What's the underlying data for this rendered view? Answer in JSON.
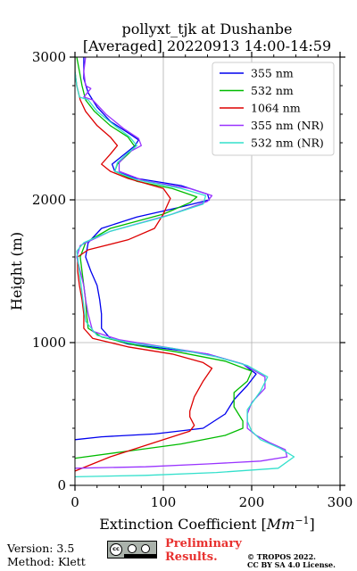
{
  "chart_data": {
    "type": "line",
    "title": "pollyxt_tjk at Dushanbe",
    "subtitle": "[Averaged] 20220913 14:00-14:59",
    "xlabel": "Extinction Coefficient [",
    "xlabel_unit": "Mm",
    "xlabel_exp": "−1",
    "xlabel_end": "]",
    "ylabel": "Height (m)",
    "xlim": [
      0,
      300
    ],
    "ylim": [
      0,
      3000
    ],
    "x_ticks": [
      0,
      100,
      200,
      300
    ],
    "y_ticks": [
      0,
      1000,
      2000,
      3000
    ],
    "grid": true,
    "legend_position": "top-right",
    "series": [
      {
        "name": "355 nm",
        "color": "#0000ee",
        "points": [
          [
            0,
            320
          ],
          [
            30,
            340
          ],
          [
            90,
            360
          ],
          [
            145,
            400
          ],
          [
            170,
            500
          ],
          [
            180,
            600
          ],
          [
            195,
            700
          ],
          [
            205,
            780
          ],
          [
            190,
            850
          ],
          [
            150,
            920
          ],
          [
            100,
            960
          ],
          [
            60,
            990
          ],
          [
            40,
            1030
          ],
          [
            30,
            1100
          ],
          [
            30,
            1200
          ],
          [
            28,
            1300
          ],
          [
            25,
            1400
          ],
          [
            18,
            1500
          ],
          [
            12,
            1600
          ],
          [
            15,
            1700
          ],
          [
            30,
            1800
          ],
          [
            70,
            1880
          ],
          [
            120,
            1950
          ],
          [
            152,
            2000
          ],
          [
            150,
            2040
          ],
          [
            120,
            2100
          ],
          [
            70,
            2150
          ],
          [
            45,
            2200
          ],
          [
            42,
            2250
          ],
          [
            52,
            2300
          ],
          [
            68,
            2380
          ],
          [
            72,
            2420
          ],
          [
            60,
            2470
          ],
          [
            40,
            2550
          ],
          [
            25,
            2650
          ],
          [
            15,
            2750
          ],
          [
            10,
            2850
          ],
          [
            10,
            2950
          ],
          [
            10,
            3000
          ]
        ]
      },
      {
        "name": "532 nm",
        "color": "#00bb00",
        "points": [
          [
            0,
            190
          ],
          [
            60,
            240
          ],
          [
            120,
            290
          ],
          [
            170,
            350
          ],
          [
            190,
            400
          ],
          [
            190,
            450
          ],
          [
            180,
            550
          ],
          [
            180,
            650
          ],
          [
            195,
            730
          ],
          [
            200,
            800
          ],
          [
            170,
            870
          ],
          [
            120,
            930
          ],
          [
            70,
            980
          ],
          [
            30,
            1040
          ],
          [
            15,
            1100
          ],
          [
            13,
            1200
          ],
          [
            12,
            1300
          ],
          [
            10,
            1400
          ],
          [
            8,
            1500
          ],
          [
            6,
            1600
          ],
          [
            12,
            1700
          ],
          [
            40,
            1800
          ],
          [
            100,
            1900
          ],
          [
            130,
            1980
          ],
          [
            138,
            2020
          ],
          [
            110,
            2080
          ],
          [
            70,
            2130
          ],
          [
            45,
            2200
          ],
          [
            48,
            2250
          ],
          [
            60,
            2320
          ],
          [
            68,
            2370
          ],
          [
            60,
            2440
          ],
          [
            40,
            2520
          ],
          [
            22,
            2620
          ],
          [
            12,
            2700
          ],
          [
            8,
            2800
          ],
          [
            5,
            2900
          ],
          [
            2,
            3000
          ]
        ]
      },
      {
        "name": "1064 nm",
        "color": "#dd0000",
        "points": [
          [
            0,
            100
          ],
          [
            40,
            200
          ],
          [
            90,
            300
          ],
          [
            130,
            380
          ],
          [
            135,
            420
          ],
          [
            130,
            480
          ],
          [
            130,
            520
          ],
          [
            135,
            620
          ],
          [
            145,
            730
          ],
          [
            155,
            820
          ],
          [
            145,
            860
          ],
          [
            110,
            920
          ],
          [
            60,
            970
          ],
          [
            20,
            1030
          ],
          [
            10,
            1100
          ],
          [
            10,
            1200
          ],
          [
            8,
            1300
          ],
          [
            5,
            1400
          ],
          [
            3,
            1500
          ],
          [
            3,
            1600
          ],
          [
            15,
            1650
          ],
          [
            60,
            1720
          ],
          [
            90,
            1800
          ],
          [
            100,
            1900
          ],
          [
            108,
            2010
          ],
          [
            100,
            2080
          ],
          [
            60,
            2150
          ],
          [
            40,
            2200
          ],
          [
            30,
            2250
          ],
          [
            40,
            2320
          ],
          [
            48,
            2380
          ],
          [
            40,
            2440
          ],
          [
            25,
            2520
          ],
          [
            12,
            2620
          ],
          [
            6,
            2700
          ],
          [
            2,
            2800
          ],
          [
            0,
            2900
          ],
          [
            0,
            3000
          ]
        ]
      },
      {
        "name": "355 nm (NR)",
        "color": "#9933ff",
        "points": [
          [
            0,
            120
          ],
          [
            80,
            130
          ],
          [
            150,
            150
          ],
          [
            210,
            170
          ],
          [
            240,
            200
          ],
          [
            238,
            250
          ],
          [
            220,
            300
          ],
          [
            205,
            350
          ],
          [
            195,
            400
          ],
          [
            195,
            500
          ],
          [
            200,
            580
          ],
          [
            215,
            680
          ],
          [
            215,
            760
          ],
          [
            190,
            850
          ],
          [
            150,
            920
          ],
          [
            100,
            970
          ],
          [
            50,
            1020
          ],
          [
            20,
            1080
          ],
          [
            15,
            1200
          ],
          [
            12,
            1300
          ],
          [
            10,
            1400
          ],
          [
            6,
            1500
          ],
          [
            2,
            1600
          ],
          [
            6,
            1680
          ],
          [
            40,
            1780
          ],
          [
            110,
            1900
          ],
          [
            150,
            1990
          ],
          [
            155,
            2030
          ],
          [
            130,
            2080
          ],
          [
            80,
            2130
          ],
          [
            50,
            2200
          ],
          [
            50,
            2260
          ],
          [
            60,
            2330
          ],
          [
            75,
            2380
          ],
          [
            72,
            2430
          ],
          [
            55,
            2500
          ],
          [
            35,
            2600
          ],
          [
            20,
            2700
          ],
          [
            10,
            2720
          ],
          [
            18,
            2780
          ],
          [
            12,
            2800
          ],
          [
            10,
            2900
          ],
          [
            12,
            3000
          ]
        ]
      },
      {
        "name": "532 nm (NR)",
        "color": "#33e0cc",
        "points": [
          [
            0,
            60
          ],
          [
            80,
            70
          ],
          [
            160,
            90
          ],
          [
            230,
            120
          ],
          [
            248,
            200
          ],
          [
            232,
            260
          ],
          [
            210,
            320
          ],
          [
            200,
            380
          ],
          [
            195,
            450
          ],
          [
            195,
            530
          ],
          [
            210,
            660
          ],
          [
            218,
            760
          ],
          [
            195,
            840
          ],
          [
            160,
            900
          ],
          [
            110,
            960
          ],
          [
            60,
            1000
          ],
          [
            25,
            1050
          ],
          [
            12,
            1150
          ],
          [
            10,
            1250
          ],
          [
            8,
            1350
          ],
          [
            6,
            1450
          ],
          [
            4,
            1550
          ],
          [
            2,
            1640
          ],
          [
            10,
            1700
          ],
          [
            40,
            1780
          ],
          [
            100,
            1880
          ],
          [
            145,
            1970
          ],
          [
            148,
            2030
          ],
          [
            120,
            2080
          ],
          [
            70,
            2140
          ],
          [
            45,
            2200
          ],
          [
            48,
            2260
          ],
          [
            60,
            2330
          ],
          [
            70,
            2380
          ],
          [
            62,
            2440
          ],
          [
            45,
            2520
          ],
          [
            25,
            2620
          ],
          [
            15,
            2700
          ],
          [
            5,
            2720
          ],
          [
            2,
            2800
          ],
          [
            0,
            2900
          ],
          [
            0,
            3000
          ]
        ]
      }
    ]
  },
  "footer": {
    "version": "Version: 3.5",
    "method": "Method: Klett",
    "prelim_line1": "Preliminary",
    "prelim_line2": "Results.",
    "copyright_line1": "© TROPOS 2022.",
    "copyright_line2": "CC BY SA 4.0 License.",
    "badge_text": "cc"
  }
}
